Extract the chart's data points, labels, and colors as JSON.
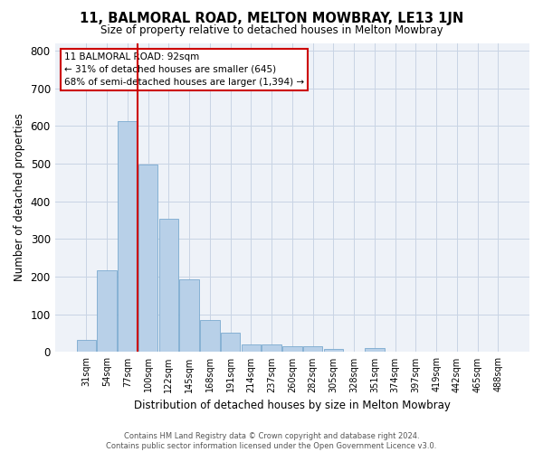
{
  "title": "11, BALMORAL ROAD, MELTON MOWBRAY, LE13 1JN",
  "subtitle": "Size of property relative to detached houses in Melton Mowbray",
  "xlabel": "Distribution of detached houses by size in Melton Mowbray",
  "ylabel": "Number of detached properties",
  "categories": [
    "31sqm",
    "54sqm",
    "77sqm",
    "100sqm",
    "122sqm",
    "145sqm",
    "168sqm",
    "191sqm",
    "214sqm",
    "237sqm",
    "260sqm",
    "282sqm",
    "305sqm",
    "328sqm",
    "351sqm",
    "374sqm",
    "397sqm",
    "419sqm",
    "442sqm",
    "465sqm",
    "488sqm"
  ],
  "values": [
    32,
    218,
    612,
    498,
    353,
    192,
    85,
    52,
    20,
    20,
    15,
    15,
    8,
    0,
    10,
    0,
    0,
    0,
    0,
    0,
    0
  ],
  "bar_color": "#b8d0e8",
  "bar_edge_color": "#7aaacf",
  "bar_width": 0.95,
  "grid_color": "#c8d4e4",
  "background_color": "#eef2f8",
  "property_line_x": 2.5,
  "property_line_color": "#cc0000",
  "annotation_box_text": "11 BALMORAL ROAD: 92sqm\n← 31% of detached houses are smaller (645)\n68% of semi-detached houses are larger (1,394) →",
  "footer_line1": "Contains HM Land Registry data © Crown copyright and database right 2024.",
  "footer_line2": "Contains public sector information licensed under the Open Government Licence v3.0.",
  "ylim": [
    0,
    820
  ],
  "yticks": [
    0,
    100,
    200,
    300,
    400,
    500,
    600,
    700,
    800
  ]
}
